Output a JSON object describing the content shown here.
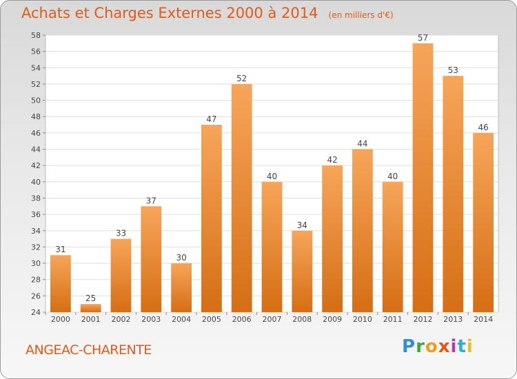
{
  "chart_data": {
    "type": "bar",
    "title": "Achats et Charges Externes 2000 à 2014",
    "unit": "(en milliers d'€)",
    "categories": [
      "2000",
      "2001",
      "2002",
      "2003",
      "2004",
      "2005",
      "2006",
      "2007",
      "2008",
      "2009",
      "2010",
      "2011",
      "2012",
      "2013",
      "2014"
    ],
    "values": [
      31,
      25,
      33,
      37,
      30,
      47,
      52,
      40,
      34,
      42,
      44,
      40,
      57,
      53,
      46
    ],
    "ylim": [
      24,
      58
    ],
    "yticks": [
      24,
      26,
      28,
      30,
      32,
      34,
      36,
      38,
      40,
      42,
      44,
      46,
      48,
      50,
      52,
      54,
      56,
      58
    ],
    "grid": true,
    "bar_color": "#e8832a"
  },
  "commune": "ANGEAC-CHARENTE",
  "logo": "Proxiti"
}
